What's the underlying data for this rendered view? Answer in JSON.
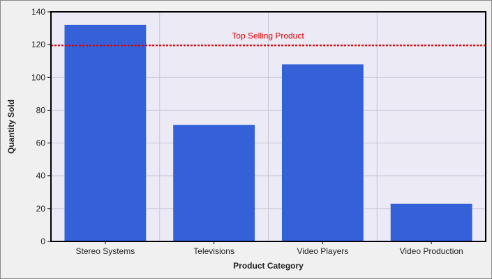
{
  "chart_data": {
    "type": "bar",
    "categories": [
      "Stereo Systems",
      "Televisions",
      "Video Players",
      "Video Production"
    ],
    "values": [
      132,
      71,
      108,
      23
    ],
    "xlabel": "Product Category",
    "ylabel": "Quantity Sold",
    "ylim": [
      0,
      140
    ],
    "yticks": [
      0,
      20,
      40,
      60,
      80,
      100,
      120,
      140
    ],
    "grid": true,
    "legend": "none",
    "reference_line": {
      "value": 119.5,
      "label": "Top Selling Product",
      "color": "#e00000",
      "style": "dashed"
    },
    "colors": {
      "bar": "#3461d8",
      "plot_background": "#eceaf5",
      "frame_background": "#f0f0f0",
      "grid": "#c8c6d6"
    }
  }
}
